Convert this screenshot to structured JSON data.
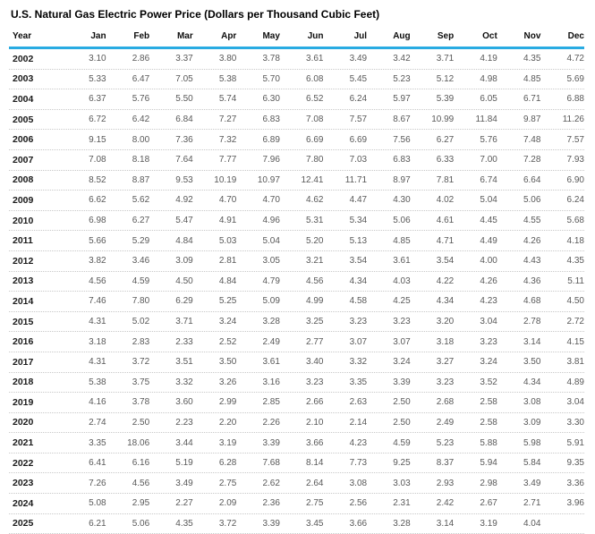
{
  "title": "U.S. Natural Gas Electric Power Price (Dollars per Thousand Cubic Feet)",
  "colors": {
    "header_rule": "#29abe2",
    "row_divider": "#c8c8c8",
    "value_text": "#595959",
    "year_text": "#1a1a1a"
  },
  "chart_data": {
    "type": "table",
    "title": "U.S. Natural Gas Electric Power Price (Dollars per Thousand Cubic Feet)",
    "unit": "Dollars per Thousand Cubic Feet",
    "columns": [
      "Year",
      "Jan",
      "Feb",
      "Mar",
      "Apr",
      "May",
      "Jun",
      "Jul",
      "Aug",
      "Sep",
      "Oct",
      "Nov",
      "Dec"
    ],
    "rows": [
      {
        "year": "2002",
        "values": [
          "3.10",
          "2.86",
          "3.37",
          "3.80",
          "3.78",
          "3.61",
          "3.49",
          "3.42",
          "3.71",
          "4.19",
          "4.35",
          "4.72"
        ]
      },
      {
        "year": "2003",
        "values": [
          "5.33",
          "6.47",
          "7.05",
          "5.38",
          "5.70",
          "6.08",
          "5.45",
          "5.23",
          "5.12",
          "4.98",
          "4.85",
          "5.69"
        ]
      },
      {
        "year": "2004",
        "values": [
          "6.37",
          "5.76",
          "5.50",
          "5.74",
          "6.30",
          "6.52",
          "6.24",
          "5.97",
          "5.39",
          "6.05",
          "6.71",
          "6.88"
        ]
      },
      {
        "year": "2005",
        "values": [
          "6.72",
          "6.42",
          "6.84",
          "7.27",
          "6.83",
          "7.08",
          "7.57",
          "8.67",
          "10.99",
          "11.84",
          "9.87",
          "11.26"
        ]
      },
      {
        "year": "2006",
        "values": [
          "9.15",
          "8.00",
          "7.36",
          "7.32",
          "6.89",
          "6.69",
          "6.69",
          "7.56",
          "6.27",
          "5.76",
          "7.48",
          "7.57"
        ]
      },
      {
        "year": "2007",
        "values": [
          "7.08",
          "8.18",
          "7.64",
          "7.77",
          "7.96",
          "7.80",
          "7.03",
          "6.83",
          "6.33",
          "7.00",
          "7.28",
          "7.93"
        ]
      },
      {
        "year": "2008",
        "values": [
          "8.52",
          "8.87",
          "9.53",
          "10.19",
          "10.97",
          "12.41",
          "11.71",
          "8.97",
          "7.81",
          "6.74",
          "6.64",
          "6.90"
        ]
      },
      {
        "year": "2009",
        "values": [
          "6.62",
          "5.62",
          "4.92",
          "4.70",
          "4.70",
          "4.62",
          "4.47",
          "4.30",
          "4.02",
          "5.04",
          "5.06",
          "6.24"
        ]
      },
      {
        "year": "2010",
        "values": [
          "6.98",
          "6.27",
          "5.47",
          "4.91",
          "4.96",
          "5.31",
          "5.34",
          "5.06",
          "4.61",
          "4.45",
          "4.55",
          "5.68"
        ]
      },
      {
        "year": "2011",
        "values": [
          "5.66",
          "5.29",
          "4.84",
          "5.03",
          "5.04",
          "5.20",
          "5.13",
          "4.85",
          "4.71",
          "4.49",
          "4.26",
          "4.18"
        ]
      },
      {
        "year": "2012",
        "values": [
          "3.82",
          "3.46",
          "3.09",
          "2.81",
          "3.05",
          "3.21",
          "3.54",
          "3.61",
          "3.54",
          "4.00",
          "4.43",
          "4.35"
        ]
      },
      {
        "year": "2013",
        "values": [
          "4.56",
          "4.59",
          "4.50",
          "4.84",
          "4.79",
          "4.56",
          "4.34",
          "4.03",
          "4.22",
          "4.26",
          "4.36",
          "5.11"
        ]
      },
      {
        "year": "2014",
        "values": [
          "7.46",
          "7.80",
          "6.29",
          "5.25",
          "5.09",
          "4.99",
          "4.58",
          "4.25",
          "4.34",
          "4.23",
          "4.68",
          "4.50"
        ]
      },
      {
        "year": "2015",
        "values": [
          "4.31",
          "5.02",
          "3.71",
          "3.24",
          "3.28",
          "3.25",
          "3.23",
          "3.23",
          "3.20",
          "3.04",
          "2.78",
          "2.72"
        ]
      },
      {
        "year": "2016",
        "values": [
          "3.18",
          "2.83",
          "2.33",
          "2.52",
          "2.49",
          "2.77",
          "3.07",
          "3.07",
          "3.18",
          "3.23",
          "3.14",
          "4.15"
        ]
      },
      {
        "year": "2017",
        "values": [
          "4.31",
          "3.72",
          "3.51",
          "3.50",
          "3.61",
          "3.40",
          "3.32",
          "3.24",
          "3.27",
          "3.24",
          "3.50",
          "3.81"
        ]
      },
      {
        "year": "2018",
        "values": [
          "5.38",
          "3.75",
          "3.32",
          "3.26",
          "3.16",
          "3.23",
          "3.35",
          "3.39",
          "3.23",
          "3.52",
          "4.34",
          "4.89"
        ]
      },
      {
        "year": "2019",
        "values": [
          "4.16",
          "3.78",
          "3.60",
          "2.99",
          "2.85",
          "2.66",
          "2.63",
          "2.50",
          "2.68",
          "2.58",
          "3.08",
          "3.04"
        ]
      },
      {
        "year": "2020",
        "values": [
          "2.74",
          "2.50",
          "2.23",
          "2.20",
          "2.26",
          "2.10",
          "2.14",
          "2.50",
          "2.49",
          "2.58",
          "3.09",
          "3.30"
        ]
      },
      {
        "year": "2021",
        "values": [
          "3.35",
          "18.06",
          "3.44",
          "3.19",
          "3.39",
          "3.66",
          "4.23",
          "4.59",
          "5.23",
          "5.88",
          "5.98",
          "5.91"
        ]
      },
      {
        "year": "2022",
        "values": [
          "6.41",
          "6.16",
          "5.19",
          "6.28",
          "7.68",
          "8.14",
          "7.73",
          "9.25",
          "8.37",
          "5.94",
          "5.84",
          "9.35"
        ]
      },
      {
        "year": "2023",
        "values": [
          "7.26",
          "4.56",
          "3.49",
          "2.75",
          "2.62",
          "2.64",
          "3.08",
          "3.03",
          "2.93",
          "2.98",
          "3.49",
          "3.36"
        ]
      },
      {
        "year": "2024",
        "values": [
          "5.08",
          "2.95",
          "2.27",
          "2.09",
          "2.36",
          "2.75",
          "2.56",
          "2.31",
          "2.42",
          "2.67",
          "2.71",
          "3.96"
        ]
      },
      {
        "year": "2025",
        "values": [
          "6.21",
          "5.06",
          "4.35",
          "3.72",
          "3.39",
          "3.45",
          "3.66",
          "3.28",
          "3.14",
          "3.19",
          "4.04",
          ""
        ]
      }
    ]
  }
}
